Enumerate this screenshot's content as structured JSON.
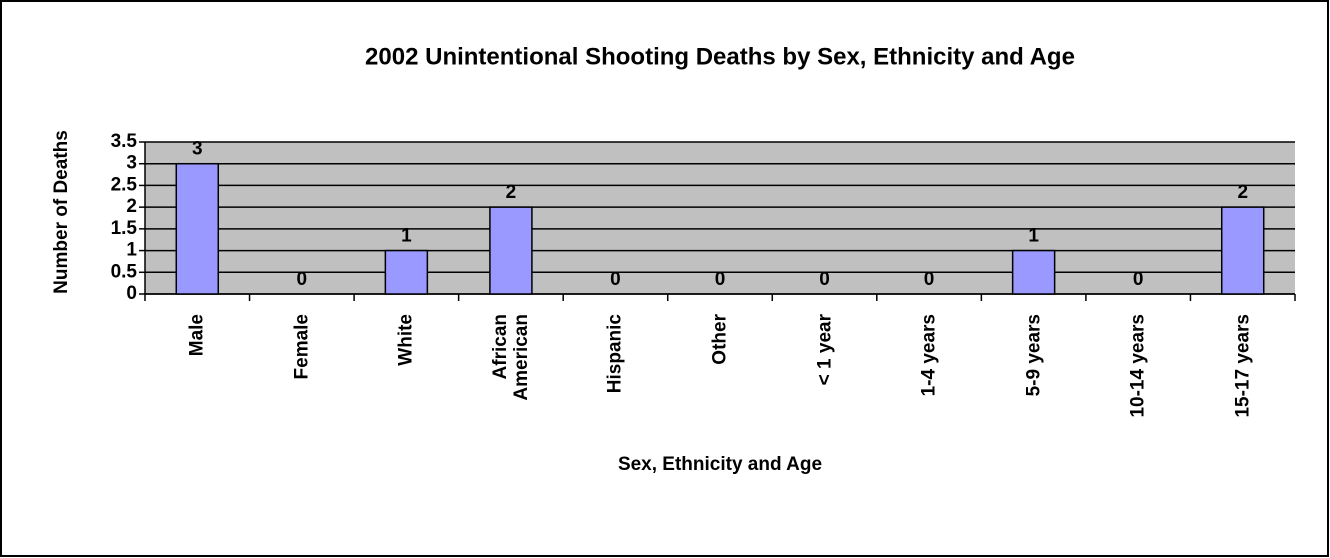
{
  "chart_data": {
    "type": "bar",
    "title": "2002 Unintentional Shooting Deaths by Sex, Ethnicity and Age",
    "x_label": "Sex, Ethnicity and Age",
    "y_label": "Number of Deaths",
    "categories": [
      "Male",
      "Female",
      "White",
      "African American",
      "Hispanic",
      "Other",
      "< 1 year",
      "1-4 years",
      "5-9 years",
      "10-14 years",
      "15-17 years"
    ],
    "values": [
      3,
      0,
      1,
      2,
      0,
      0,
      0,
      0,
      1,
      0,
      2
    ],
    "color": "#9999ff",
    "plot_background": "#c0c0c0",
    "ylim": [
      0,
      3.5
    ],
    "yticks": [
      0,
      0.5,
      1,
      1.5,
      2,
      2.5,
      3,
      3.5
    ],
    "grid": true
  }
}
